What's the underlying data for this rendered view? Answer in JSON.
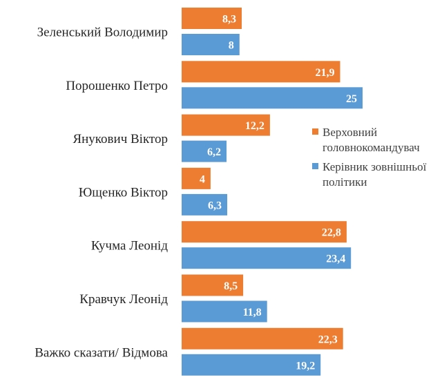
{
  "chart_data": {
    "type": "bar",
    "orientation": "horizontal",
    "categories": [
      "Зеленський Володимир",
      "Порошенко Петро",
      "Янукович Віктор",
      "Ющенко Віктор",
      "Кучма Леонід",
      "Кравчук Леонід",
      "Важко сказати/ Відмова"
    ],
    "series": [
      {
        "name": "Верховний головнокомандувач",
        "legend_lines": [
          "Верховний",
          "головнокомандувач"
        ],
        "color": "#ED7D31",
        "values": [
          8.3,
          21.9,
          12.2,
          4,
          22.8,
          8.5,
          22.3
        ],
        "labels": [
          "8,3",
          "21,9",
          "12,2",
          "4",
          "22,8",
          "8,5",
          "22,3"
        ]
      },
      {
        "name": "Керівник зовнішньої політики",
        "legend_lines": [
          "Керівник зовнішньої",
          "політики"
        ],
        "color": "#5B9BD5",
        "values": [
          8,
          25,
          6.2,
          6.3,
          23.4,
          11.8,
          19.2
        ],
        "labels": [
          "8",
          "25",
          "6,2",
          "6,3",
          "23,4",
          "11,8",
          "19,2"
        ]
      }
    ],
    "xlim": [
      0,
      25
    ],
    "grid": false,
    "legend_position": "right",
    "title": "",
    "xlabel": "",
    "ylabel": ""
  }
}
